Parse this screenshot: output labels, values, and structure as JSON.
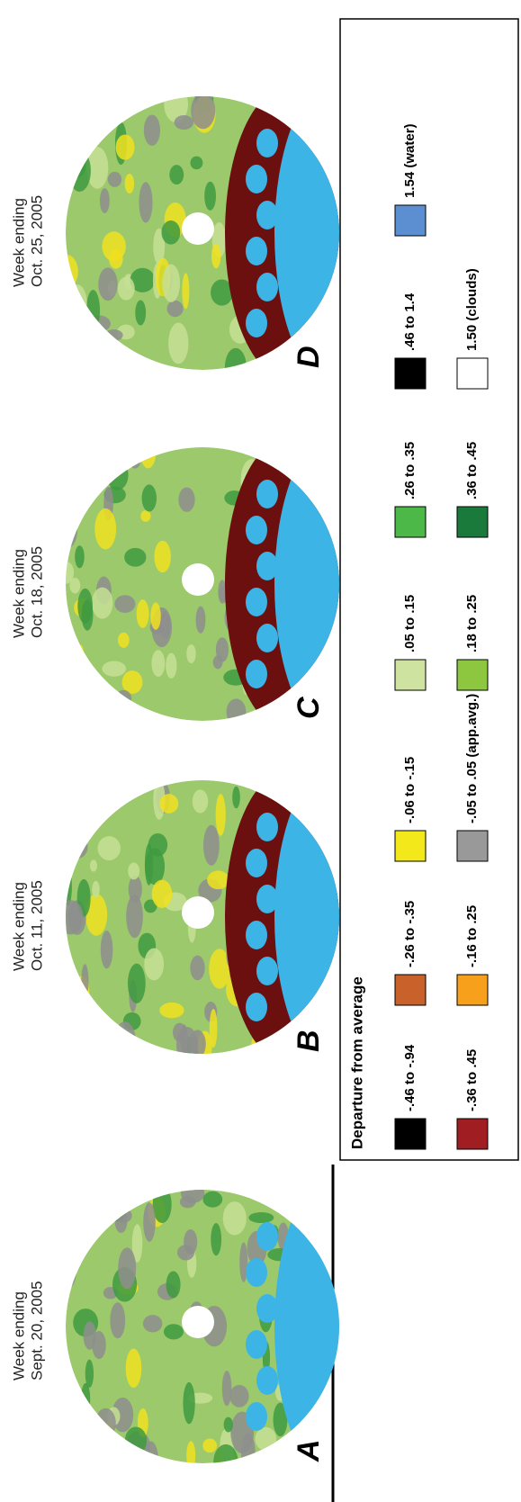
{
  "panels": [
    {
      "label": "A",
      "caption": [
        "Week ending",
        "Sept. 20, 2005"
      ]
    },
    {
      "label": "B",
      "caption": [
        "Week ending",
        "Oct. 11, 2005"
      ]
    },
    {
      "label": "C",
      "caption": [
        "Week ending",
        "Oct. 18, 2005"
      ]
    },
    {
      "label": "D",
      "caption": [
        "Week ending",
        "Oct. 25, 2005"
      ]
    }
  ],
  "legend": {
    "title": "Departure from average",
    "rows": [
      [
        {
          "label": "-.46 to -.94",
          "color": "#000000"
        },
        {
          "label": "-.26 to -.35",
          "color": "#c8612a"
        },
        {
          "label": "-.06 to -.15",
          "color": "#f2e81a"
        },
        {
          "label": ".05 to .15",
          "color": "#cfe3a0"
        },
        {
          "label": ".26 to .35",
          "color": "#4cb848"
        },
        {
          "label": ".46 to 1.4",
          "color": "#000000"
        },
        {
          "label": "1.54 (water)",
          "color": "#5b8fd1"
        }
      ],
      [
        {
          "label": "-.36 to .45",
          "color": "#a01e22"
        },
        {
          "label": "-.16 to .25",
          "color": "#f7a01c"
        },
        {
          "label": "-.05 to .05 (app.avg.)",
          "color": "#999999"
        },
        {
          "label": ".18 to .25",
          "color": "#8dc63f"
        },
        {
          "label": ".36 to .45",
          "color": "#1a7a3c"
        },
        {
          "label": "1.50 (clouds)",
          "color": "#ffffff"
        }
      ]
    ]
  }
}
